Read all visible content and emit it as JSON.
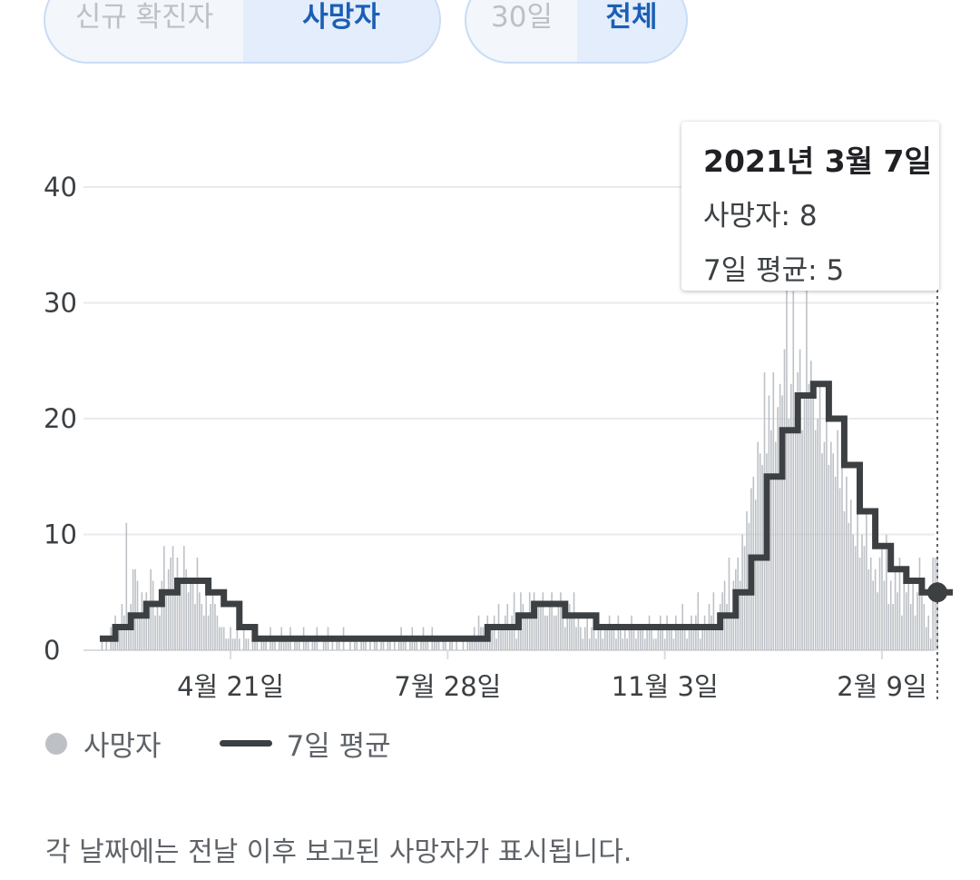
{
  "toggles": {
    "metric": {
      "options": [
        "신규 확진자",
        "사망자"
      ],
      "selected": "사망자"
    },
    "range": {
      "options": [
        "30일",
        "전체"
      ],
      "selected": "전체"
    }
  },
  "tooltip": {
    "date": "2021년 3월 7일",
    "deaths_label": "사망자:",
    "deaths_value": "8",
    "avg_label": "7일 평균:",
    "avg_value": "5"
  },
  "legend": {
    "bars": "사망자",
    "line": "7일 평균"
  },
  "footnote": "각 날짜에는 전날 이후 보고된 사망자가 표시됩니다.",
  "colors": {
    "bars": "#bdc1c6",
    "line": "#3c4043",
    "grid": "#e8eaed",
    "accent": "#1a5fb4"
  },
  "chart_data": {
    "type": "bar",
    "title": "",
    "xlabel": "",
    "ylabel": "",
    "ylim": [
      0,
      40
    ],
    "yticks": [
      0,
      10,
      20,
      30,
      40
    ],
    "x_tick_labels": [
      "4월 21일",
      "7월 28일",
      "11월 3일",
      "2월 9일"
    ],
    "x_range": [
      "2020-02-22",
      "2021-03-07"
    ],
    "grid": true,
    "legend_position": "bottom-left",
    "highlight": {
      "date": "2021-03-07",
      "deaths": 8,
      "avg": 5
    },
    "series": [
      {
        "name": "사망자",
        "type": "bar",
        "values_by_week": [
          [
            0,
            1,
            0,
            1,
            0,
            2,
            2
          ],
          [
            3,
            1,
            2,
            4,
            3,
            11,
            2
          ],
          [
            4,
            7,
            7,
            6,
            3,
            5,
            4
          ],
          [
            5,
            3,
            7,
            6,
            3,
            4,
            3
          ],
          [
            6,
            9,
            5,
            7,
            8,
            9,
            6
          ],
          [
            8,
            5,
            6,
            9,
            7,
            5,
            6
          ],
          [
            6,
            4,
            8,
            5,
            4,
            3,
            5
          ],
          [
            3,
            4,
            5,
            4,
            3,
            2,
            2
          ],
          [
            2,
            1,
            1,
            2,
            1,
            1,
            2
          ],
          [
            1,
            0,
            2,
            1,
            1,
            0,
            1
          ],
          [
            1,
            2,
            0,
            1,
            1,
            1,
            0
          ],
          [
            2,
            1,
            1,
            0,
            1,
            2,
            1
          ],
          [
            1,
            1,
            2,
            0,
            1,
            1,
            1
          ],
          [
            0,
            2,
            1,
            1,
            0,
            1,
            1
          ],
          [
            2,
            0,
            0,
            1,
            1,
            2,
            0
          ],
          [
            1,
            0,
            1,
            1,
            0,
            2,
            0
          ],
          [
            0,
            1,
            0,
            1,
            1,
            0,
            1
          ],
          [
            1,
            1,
            0,
            1,
            0,
            1,
            1
          ],
          [
            0,
            1,
            1,
            0,
            1,
            1,
            0
          ],
          [
            1,
            0,
            1,
            2,
            1,
            1,
            0
          ],
          [
            1,
            2,
            1,
            1,
            0,
            1,
            2
          ],
          [
            1,
            1,
            0,
            2,
            1,
            1,
            1
          ],
          [
            0,
            1,
            1,
            0,
            1,
            1,
            0
          ],
          [
            1,
            0,
            0,
            1,
            0,
            1,
            1
          ],
          [
            1,
            2,
            1,
            3,
            2,
            2,
            1
          ],
          [
            3,
            2,
            2,
            3,
            1,
            4,
            2
          ],
          [
            2,
            3,
            4,
            2,
            3,
            5,
            1
          ],
          [
            3,
            5,
            4,
            3,
            3,
            5,
            4
          ],
          [
            5,
            3,
            4,
            4,
            5,
            3,
            3
          ],
          [
            4,
            5,
            3,
            3,
            4,
            5,
            3
          ],
          [
            2,
            3,
            4,
            3,
            5,
            2,
            3
          ],
          [
            2,
            1,
            2,
            3,
            1,
            2,
            2
          ],
          [
            1,
            3,
            2,
            1,
            2,
            2,
            3
          ],
          [
            2,
            2,
            1,
            3,
            2,
            1,
            2
          ],
          [
            1,
            2,
            3,
            2,
            1,
            2,
            2
          ],
          [
            2,
            1,
            2,
            3,
            2,
            1,
            1
          ],
          [
            2,
            3,
            2,
            1,
            3,
            2,
            2
          ],
          [
            1,
            3,
            2,
            2,
            4,
            2,
            1
          ],
          [
            2,
            3,
            2,
            3,
            5,
            1,
            2
          ],
          [
            3,
            2,
            4,
            3,
            5,
            2,
            3
          ],
          [
            4,
            5,
            6,
            4,
            8,
            3,
            6
          ],
          [
            7,
            8,
            6,
            10,
            9,
            12,
            11
          ],
          [
            14,
            15,
            13,
            18,
            17,
            16,
            24
          ],
          [
            17,
            22,
            19,
            24,
            18,
            21,
            23
          ],
          [
            22,
            26,
            34,
            20,
            23,
            31,
            20
          ],
          [
            24,
            26,
            19,
            22,
            35,
            23,
            25
          ],
          [
            22,
            19,
            20,
            23,
            17,
            18,
            21
          ],
          [
            16,
            18,
            17,
            15,
            19,
            14,
            16
          ],
          [
            12,
            15,
            11,
            13,
            10,
            9,
            14
          ],
          [
            8,
            10,
            9,
            12,
            7,
            8,
            6
          ],
          [
            7,
            5,
            8,
            9,
            6,
            10,
            4
          ],
          [
            6,
            4,
            7,
            5,
            8,
            3,
            6
          ],
          [
            5,
            7,
            4,
            6,
            3,
            5,
            8
          ],
          [
            6,
            4,
            2,
            3,
            1,
            8,
            8
          ],
          [
            8
          ]
        ]
      },
      {
        "name": "7일 평균",
        "type": "line",
        "weekly_avg": [
          1,
          2,
          3,
          4,
          5,
          6,
          6,
          5,
          4,
          2,
          1,
          1,
          1,
          1,
          1,
          1,
          1,
          1,
          1,
          1,
          1,
          1,
          1,
          1,
          1,
          2,
          2,
          3,
          4,
          4,
          3,
          3,
          2,
          2,
          2,
          2,
          2,
          2,
          2,
          2,
          3,
          5,
          8,
          15,
          19,
          22,
          23,
          20,
          16,
          12,
          9,
          7,
          6,
          5,
          5,
          5
        ]
      }
    ]
  }
}
